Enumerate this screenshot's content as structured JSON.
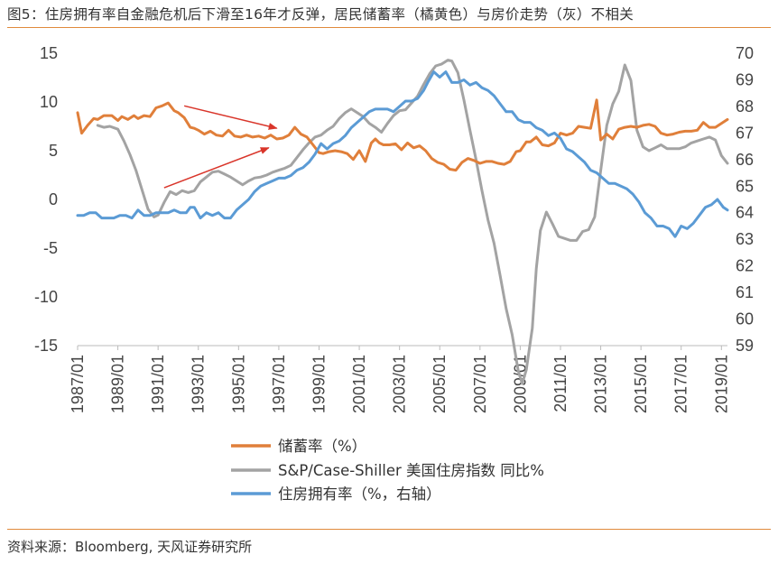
{
  "title": "图5：住房拥有率自金融危机后下滑至16年才反弹，居民储蓄率（橘黄色）与房价走势（灰）不相关",
  "source": "资料来源：Bloomberg, 天风证券研究所",
  "colors": {
    "savings": "#e07f3a",
    "caseshiller": "#a3a3a3",
    "homeownership": "#5b9bd5",
    "arrow": "#d9352a",
    "rule": "#e08a3c"
  },
  "chart_data": {
    "type": "line",
    "title": "住房拥有率自金融危机后下滑至16年才反弹，居民储蓄率（橘黄色）与房价走势（灰）不相关",
    "x_tick_labels": [
      "1987/01",
      "1989/01",
      "1991/01",
      "1993/01",
      "1995/01",
      "1997/01",
      "1999/01",
      "2001/01",
      "2003/01",
      "2005/01",
      "2007/01",
      "2009/01",
      "2011/01",
      "2013/01",
      "2015/01",
      "2017/01",
      "2019/01"
    ],
    "x_range": [
      1987.0,
      2019.3
    ],
    "y_left": {
      "range": [
        -15,
        15
      ],
      "ticks": [
        "15",
        "10",
        "5",
        "0",
        "-5",
        "-10",
        "-15"
      ]
    },
    "y_right": {
      "range": [
        59,
        70
      ],
      "ticks": [
        "70",
        "69",
        "68",
        "67",
        "66",
        "65",
        "64",
        "63",
        "62",
        "61",
        "60",
        "59"
      ]
    },
    "grid": false,
    "legend_position": "bottom",
    "series": [
      {
        "name": "储蓄率（%）",
        "axis": "left",
        "color_key": "savings",
        "x": [
          1987.0,
          1987.2,
          1987.5,
          1987.8,
          1988.0,
          1988.3,
          1988.7,
          1989.0,
          1989.2,
          1989.5,
          1989.8,
          1990.0,
          1990.3,
          1990.6,
          1990.9,
          1991.2,
          1991.5,
          1991.8,
          1992.0,
          1992.3,
          1992.6,
          1992.8,
          1993.0,
          1993.3,
          1993.6,
          1993.9,
          1994.2,
          1994.5,
          1994.8,
          1995.1,
          1995.4,
          1995.7,
          1996.0,
          1996.3,
          1996.6,
          1996.9,
          1997.2,
          1997.5,
          1997.8,
          1998.1,
          1998.4,
          1998.7,
          1999.0,
          1999.2,
          1999.5,
          1999.8,
          2000.1,
          2000.4,
          2000.7,
          2001.0,
          2001.3,
          2001.6,
          2001.8,
          2002.0,
          2002.2,
          2002.5,
          2002.8,
          2003.1,
          2003.4,
          2003.7,
          2004.0,
          2004.3,
          2004.6,
          2004.9,
          2005.2,
          2005.5,
          2005.8,
          2006.1,
          2006.4,
          2006.7,
          2007.0,
          2007.3,
          2007.6,
          2007.9,
          2008.2,
          2008.5,
          2008.8,
          2009.0,
          2009.3,
          2009.5,
          2009.8,
          2010.1,
          2010.4,
          2010.7,
          2011.0,
          2011.3,
          2011.6,
          2011.9,
          2012.2,
          2012.5,
          2012.8,
          2013.0,
          2013.3,
          2013.6,
          2013.9,
          2014.2,
          2014.5,
          2014.8,
          2015.1,
          2015.4,
          2015.7,
          2016.0,
          2016.3,
          2016.6,
          2016.9,
          2017.2,
          2017.5,
          2017.8,
          2018.1,
          2018.4,
          2018.7,
          2019.0,
          2019.3
        ],
        "y": [
          8.9,
          6.8,
          7.6,
          8.3,
          8.2,
          8.6,
          8.6,
          8.1,
          8.5,
          8.2,
          8.6,
          8.3,
          8.6,
          8.5,
          9.4,
          9.6,
          9.9,
          9.1,
          8.9,
          8.4,
          7.4,
          7.3,
          7.1,
          6.7,
          7.0,
          6.6,
          6.5,
          7.1,
          6.5,
          6.4,
          6.6,
          6.4,
          6.5,
          6.3,
          6.6,
          6.2,
          6.3,
          6.6,
          7.4,
          6.7,
          6.4,
          5.6,
          4.8,
          4.7,
          4.9,
          5.0,
          4.9,
          4.7,
          4.1,
          5.0,
          3.9,
          5.8,
          6.2,
          5.8,
          5.6,
          5.6,
          5.7,
          5.1,
          5.8,
          5.3,
          5.5,
          5.0,
          4.2,
          3.8,
          3.6,
          3.1,
          3.0,
          3.8,
          4.2,
          4.0,
          3.7,
          3.9,
          3.9,
          3.7,
          3.6,
          3.9,
          4.9,
          5.0,
          5.9,
          5.9,
          6.4,
          5.6,
          5.5,
          5.8,
          6.8,
          6.6,
          6.8,
          7.5,
          7.4,
          7.3,
          10.2,
          6.1,
          6.7,
          6.2,
          7.2,
          7.4,
          7.5,
          7.4,
          7.6,
          7.7,
          7.5,
          6.8,
          6.6,
          6.7,
          6.9,
          7.0,
          7.0,
          7.1,
          7.9,
          7.4,
          7.4,
          7.8,
          8.2
        ]
      },
      {
        "name": "S&P/Case-Shiller 美国住房指数 同比%",
        "axis": "left",
        "color_key": "caseshiller",
        "x": [
          1988.0,
          1988.3,
          1988.6,
          1989.0,
          1989.3,
          1989.6,
          1989.9,
          1990.2,
          1990.5,
          1990.8,
          1991.0,
          1991.3,
          1991.6,
          1991.9,
          1992.2,
          1992.5,
          1992.8,
          1993.1,
          1993.4,
          1993.7,
          1994.0,
          1994.3,
          1994.6,
          1994.9,
          1995.2,
          1995.5,
          1995.8,
          1996.1,
          1996.4,
          1996.7,
          1997.0,
          1997.3,
          1997.6,
          1997.9,
          1998.2,
          1998.5,
          1998.8,
          1999.1,
          1999.4,
          1999.7,
          2000.0,
          2000.3,
          2000.6,
          2000.9,
          2001.2,
          2001.5,
          2001.8,
          2002.1,
          2002.4,
          2002.7,
          2003.0,
          2003.3,
          2003.6,
          2003.9,
          2004.2,
          2004.5,
          2004.8,
          2005.1,
          2005.4,
          2005.6,
          2005.9,
          2006.2,
          2006.5,
          2006.8,
          2007.1,
          2007.4,
          2007.7,
          2008.0,
          2008.3,
          2008.6,
          2008.9,
          2009.1,
          2009.3,
          2009.6,
          2009.8,
          2010.0,
          2010.3,
          2010.6,
          2010.9,
          2011.2,
          2011.5,
          2011.8,
          2012.1,
          2012.4,
          2012.7,
          2013.0,
          2013.3,
          2013.6,
          2013.9,
          2014.2,
          2014.5,
          2014.8,
          2015.1,
          2015.4,
          2015.7,
          2016.0,
          2016.3,
          2016.6,
          2016.9,
          2017.2,
          2017.5,
          2017.8,
          2018.1,
          2018.4,
          2018.7,
          2019.0,
          2019.3
        ],
        "y": [
          7.6,
          7.4,
          7.5,
          7.2,
          6.0,
          4.6,
          3.0,
          1.0,
          -1.0,
          -1.8,
          -1.6,
          -0.3,
          0.8,
          0.5,
          0.9,
          0.7,
          0.9,
          1.8,
          2.3,
          2.8,
          2.9,
          2.6,
          2.3,
          1.9,
          1.5,
          1.9,
          2.2,
          2.3,
          2.5,
          2.8,
          3.0,
          3.2,
          3.5,
          4.3,
          5.1,
          5.8,
          6.4,
          6.6,
          7.1,
          7.5,
          8.3,
          8.9,
          9.3,
          8.9,
          8.5,
          7.8,
          7.4,
          6.9,
          7.8,
          8.6,
          9.1,
          9.2,
          9.9,
          10.6,
          11.8,
          12.9,
          13.7,
          13.9,
          14.3,
          14.2,
          13.0,
          10.2,
          7.1,
          4.1,
          0.9,
          -2.1,
          -4.5,
          -7.8,
          -11.2,
          -13.9,
          -17.6,
          -18.9,
          -17.5,
          -13.2,
          -7.1,
          -3.2,
          -1.3,
          -2.5,
          -3.8,
          -4.0,
          -4.2,
          -4.2,
          -3.3,
          -3.1,
          -1.8,
          3.0,
          7.6,
          9.8,
          11.1,
          13.8,
          12.2,
          7.1,
          5.4,
          5.0,
          5.3,
          5.6,
          5.2,
          5.2,
          5.2,
          5.4,
          5.8,
          6.0,
          6.2,
          6.4,
          6.1,
          4.5,
          3.7
        ]
      },
      {
        "name": "住房拥有率（%，右轴）",
        "axis": "right",
        "color_key": "homeownership",
        "x": [
          1987.0,
          1987.3,
          1987.6,
          1987.9,
          1988.2,
          1988.5,
          1988.8,
          1989.1,
          1989.4,
          1989.7,
          1990.0,
          1990.3,
          1990.6,
          1990.9,
          1991.2,
          1991.5,
          1991.8,
          1992.1,
          1992.4,
          1992.6,
          1992.8,
          1993.1,
          1993.4,
          1993.7,
          1994.0,
          1994.3,
          1994.6,
          1994.9,
          1995.2,
          1995.5,
          1995.8,
          1996.1,
          1996.4,
          1996.7,
          1997.0,
          1997.3,
          1997.6,
          1997.9,
          1998.2,
          1998.5,
          1998.8,
          1999.1,
          1999.4,
          1999.7,
          2000.0,
          2000.3,
          2000.6,
          2000.9,
          2001.2,
          2001.5,
          2001.8,
          2002.1,
          2002.4,
          2002.7,
          2003.0,
          2003.3,
          2003.6,
          2003.9,
          2004.2,
          2004.4,
          2004.7,
          2005.0,
          2005.3,
          2005.6,
          2005.9,
          2006.2,
          2006.5,
          2006.8,
          2007.1,
          2007.4,
          2007.7,
          2008.0,
          2008.3,
          2008.6,
          2008.9,
          2009.2,
          2009.5,
          2009.8,
          2010.1,
          2010.4,
          2010.7,
          2011.0,
          2011.3,
          2011.6,
          2011.9,
          2012.2,
          2012.5,
          2012.8,
          2013.1,
          2013.4,
          2013.7,
          2014.0,
          2014.3,
          2014.6,
          2014.9,
          2015.2,
          2015.5,
          2015.8,
          2016.1,
          2016.4,
          2016.7,
          2017.0,
          2017.3,
          2017.6,
          2017.9,
          2018.2,
          2018.5,
          2018.8,
          2019.1,
          2019.3
        ],
        "y": [
          63.9,
          63.9,
          64.0,
          64.0,
          63.8,
          63.8,
          63.8,
          63.9,
          63.9,
          63.8,
          64.1,
          63.9,
          63.9,
          64.0,
          64.0,
          64.0,
          64.1,
          64.0,
          64.0,
          64.2,
          64.2,
          63.8,
          64.0,
          63.9,
          64.0,
          63.8,
          63.8,
          64.1,
          64.3,
          64.5,
          64.8,
          65.0,
          65.1,
          65.2,
          65.3,
          65.3,
          65.4,
          65.6,
          65.7,
          65.9,
          66.2,
          66.6,
          66.4,
          66.6,
          66.7,
          66.9,
          67.2,
          67.4,
          67.6,
          67.8,
          67.9,
          67.9,
          67.9,
          67.8,
          68.0,
          68.2,
          68.2,
          68.3,
          68.6,
          68.9,
          69.3,
          69.1,
          69.3,
          68.9,
          68.9,
          69.0,
          68.8,
          68.9,
          68.7,
          68.6,
          68.4,
          68.1,
          67.8,
          67.8,
          67.5,
          67.4,
          67.4,
          67.2,
          67.1,
          66.9,
          67.0,
          66.8,
          66.4,
          66.3,
          66.1,
          65.9,
          65.6,
          65.5,
          65.3,
          65.1,
          65.1,
          65.0,
          64.9,
          64.7,
          64.4,
          64.0,
          63.8,
          63.5,
          63.5,
          63.4,
          63.1,
          63.5,
          63.4,
          63.6,
          63.9,
          64.2,
          64.3,
          64.5,
          64.2,
          64.1
        ]
      }
    ],
    "annotations": [
      {
        "type": "arrow",
        "from": [
          1992.3,
          9.6
        ],
        "to": [
          1996.9,
          7.3
        ],
        "note": "savings rate down-trend"
      },
      {
        "type": "arrow",
        "from": [
          1991.3,
          1.2
        ],
        "to": [
          1996.5,
          5.3
        ],
        "note": "home price up-trend"
      }
    ]
  }
}
